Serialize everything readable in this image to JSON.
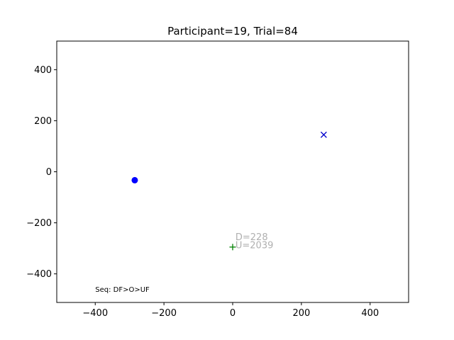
{
  "chart_data": {
    "type": "scatter",
    "title": "Participant=19, Trial=84",
    "xlabel": "",
    "ylabel": "",
    "xlim": [
      -512,
      512
    ],
    "ylim": [
      -512,
      512
    ],
    "xticks": [
      -400,
      -200,
      0,
      200,
      400
    ],
    "yticks": [
      -400,
      -200,
      0,
      200,
      400
    ],
    "xtick_labels": [
      "−400",
      "−200",
      "0",
      "200",
      "400"
    ],
    "ytick_labels": [
      "−400",
      "−200",
      "0",
      "200",
      "400"
    ],
    "grid": false,
    "points": [
      {
        "marker": "circle",
        "x": -285,
        "y": -33,
        "color": "#0000ff"
      },
      {
        "marker": "x",
        "x": 265,
        "y": 145,
        "color": "#0000cc"
      },
      {
        "marker": "plus",
        "x": 0,
        "y": -295,
        "color": "#008000"
      }
    ],
    "annotations": [
      {
        "text": "D=228",
        "x": 8,
        "y": -268
      },
      {
        "text": "U=2039",
        "x": 8,
        "y": -300
      }
    ],
    "note": {
      "text": "Seq: DF>O>UF",
      "x": -400,
      "y": -470
    }
  }
}
